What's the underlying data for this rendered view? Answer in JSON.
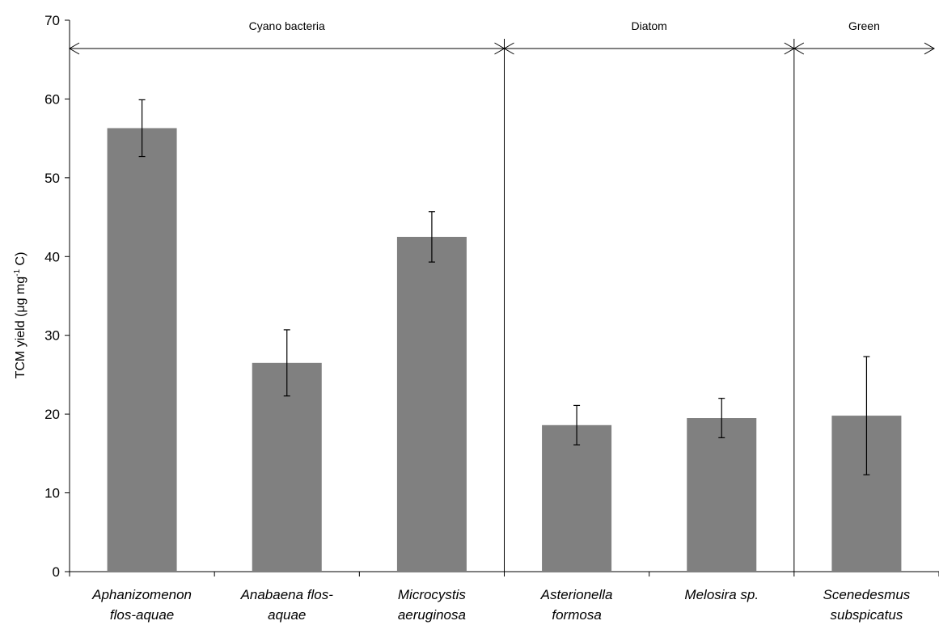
{
  "chart_data": {
    "type": "bar",
    "categories": [
      [
        "Aphanizomenon",
        "flos-aquae"
      ],
      [
        "Anabaena flos-",
        "aquae"
      ],
      [
        "Microcystis",
        "aeruginosa"
      ],
      [
        "Asterionella",
        "formosa"
      ],
      [
        "Melosira sp."
      ],
      [
        "Scenedesmus",
        "subspicatus"
      ]
    ],
    "values": [
      56.3,
      26.5,
      42.5,
      18.6,
      19.5,
      19.8
    ],
    "errors": [
      3.6,
      4.2,
      3.2,
      2.5,
      2.5,
      7.5
    ],
    "groups": [
      {
        "label": "Cyano bacteria",
        "start": 0,
        "end": 3
      },
      {
        "label": "Diatom",
        "start": 3,
        "end": 5
      },
      {
        "label": "Green",
        "start": 5,
        "end": 6
      }
    ],
    "ylabel": {
      "main": "TCM yield (μg mg",
      "sup": "-1",
      "tail": " C)"
    },
    "ylim": [
      0,
      70
    ],
    "yticks": [
      0,
      10,
      20,
      30,
      40,
      50,
      60,
      70
    ],
    "bar_color": "#808080",
    "grid": false
  }
}
